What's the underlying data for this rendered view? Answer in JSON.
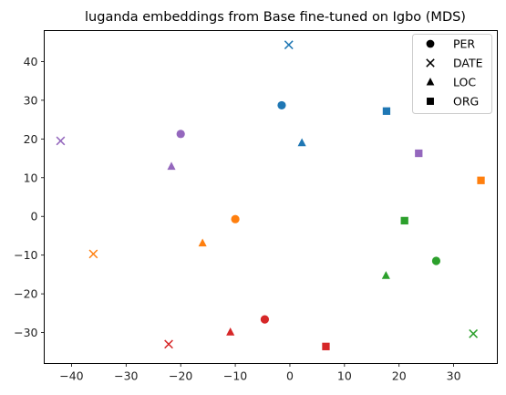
{
  "chart_data": {
    "type": "scatter",
    "title": "luganda embeddings from Base fine-tuned on Igbo (MDS)",
    "xlabel": "",
    "ylabel": "",
    "xlim": [
      -45,
      38
    ],
    "ylim": [
      -38,
      48
    ],
    "xticks": [
      -40,
      -30,
      -20,
      -10,
      0,
      10,
      20,
      30
    ],
    "yticks": [
      -30,
      -20,
      -10,
      0,
      10,
      20,
      30,
      40
    ],
    "grid": false,
    "legend_position": "top-right",
    "legend": [
      {
        "label": "PER",
        "marker": "circle"
      },
      {
        "label": "DATE",
        "marker": "x"
      },
      {
        "label": "LOC",
        "marker": "triangle"
      },
      {
        "label": "ORG",
        "marker": "square"
      }
    ],
    "points": [
      {
        "entity": "PER",
        "color": "#1f77b4",
        "x": -1.5,
        "y": 28.7
      },
      {
        "entity": "DATE",
        "color": "#1f77b4",
        "x": -0.2,
        "y": 44.3
      },
      {
        "entity": "LOC",
        "color": "#1f77b4",
        "x": 2.2,
        "y": 19.0
      },
      {
        "entity": "ORG",
        "color": "#1f77b4",
        "x": 17.7,
        "y": 27.2
      },
      {
        "entity": "PER",
        "color": "#ff7f0e",
        "x": -10.0,
        "y": -0.7
      },
      {
        "entity": "DATE",
        "color": "#ff7f0e",
        "x": -36.0,
        "y": -9.7
      },
      {
        "entity": "LOC",
        "color": "#ff7f0e",
        "x": -16.0,
        "y": -6.9
      },
      {
        "entity": "ORG",
        "color": "#ff7f0e",
        "x": 35.0,
        "y": 9.3
      },
      {
        "entity": "PER",
        "color": "#2ca02c",
        "x": 26.8,
        "y": -11.5
      },
      {
        "entity": "DATE",
        "color": "#2ca02c",
        "x": 33.6,
        "y": -30.3
      },
      {
        "entity": "LOC",
        "color": "#2ca02c",
        "x": 17.6,
        "y": -15.3
      },
      {
        "entity": "ORG",
        "color": "#2ca02c",
        "x": 21.0,
        "y": -1.1
      },
      {
        "entity": "PER",
        "color": "#d62728",
        "x": -4.6,
        "y": -26.6
      },
      {
        "entity": "DATE",
        "color": "#d62728",
        "x": -22.2,
        "y": -33.0
      },
      {
        "entity": "LOC",
        "color": "#d62728",
        "x": -10.9,
        "y": -29.9
      },
      {
        "entity": "ORG",
        "color": "#d62728",
        "x": 6.6,
        "y": -33.6
      },
      {
        "entity": "PER",
        "color": "#9467bd",
        "x": -20.0,
        "y": 21.3
      },
      {
        "entity": "DATE",
        "color": "#9467bd",
        "x": -42.0,
        "y": 19.5
      },
      {
        "entity": "LOC",
        "color": "#9467bd",
        "x": -21.7,
        "y": 12.9
      },
      {
        "entity": "ORG",
        "color": "#9467bd",
        "x": 23.6,
        "y": 16.3
      }
    ]
  }
}
